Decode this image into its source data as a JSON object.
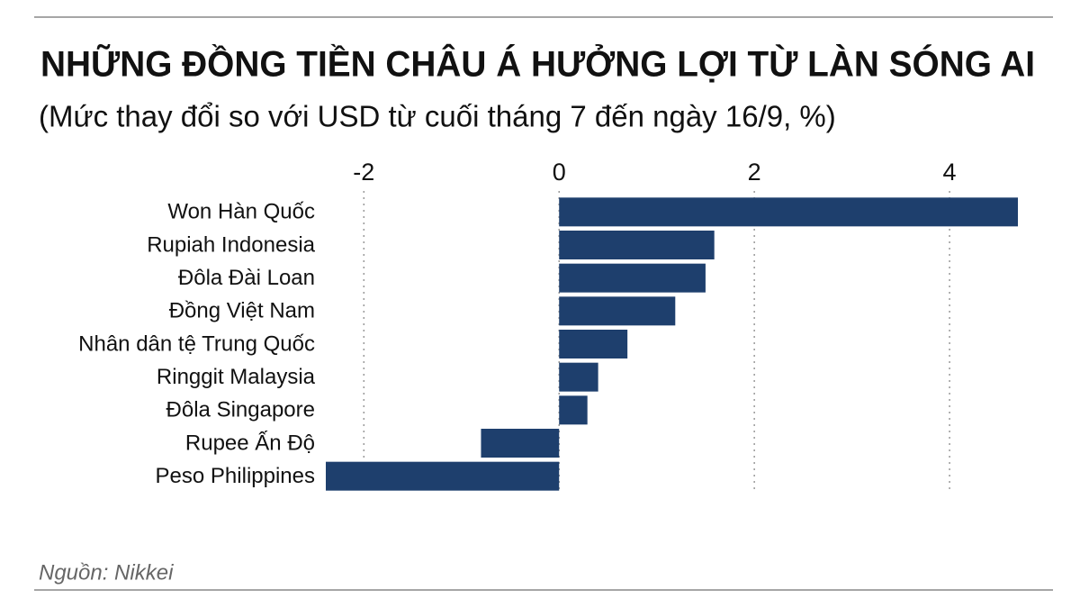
{
  "chart_data": {
    "type": "bar",
    "orientation": "horizontal",
    "title": "NHỮNG ĐỒNG TIỀN CHÂU Á HƯỞNG LỢI TỪ LÀN SÓNG AI",
    "subtitle": "(Mức thay đổi so với USD từ cuối tháng 7 đến ngày 16/9, %)",
    "source": "Nguồn: Nikkei",
    "categories": [
      "Won Hàn Quốc",
      "Rupiah Indonesia",
      "Đôla Đài Loan",
      "Đồng Việt Nam",
      "Nhân dân tệ Trung Quốc",
      "Ringgit Malaysia",
      "Đôla Singapore",
      "Rupee Ấn Độ",
      "Peso Philippines"
    ],
    "values": [
      4.7,
      1.59,
      1.5,
      1.19,
      0.7,
      0.4,
      0.29,
      -0.8,
      -2.39
    ],
    "color": "#1e3f6d",
    "xlim": [
      -2.39,
      4.7
    ],
    "xticks": [
      -2,
      0,
      2,
      4
    ],
    "grid": true
  }
}
